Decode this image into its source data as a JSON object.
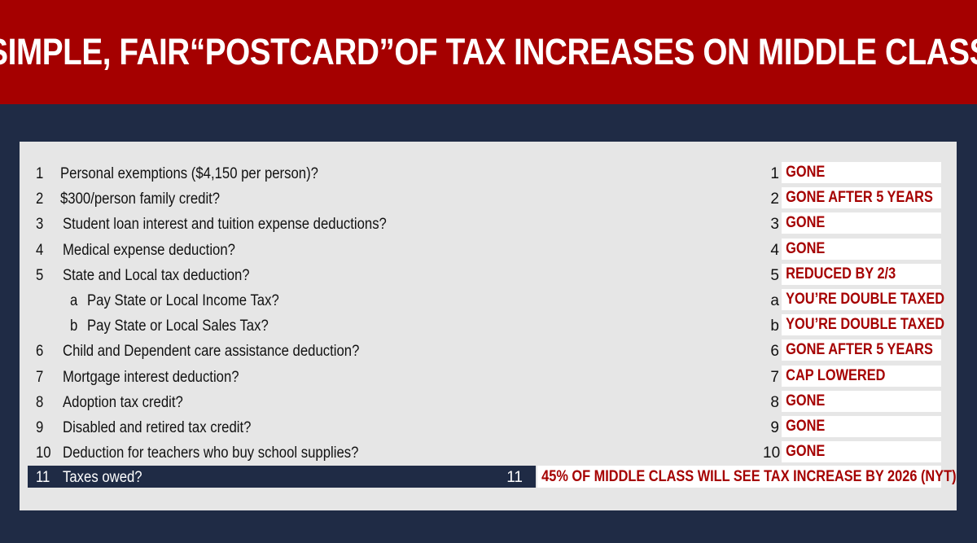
{
  "title": "SIMPLE, FAIR“POSTCARD”OF TAX INCREASES ON MIDDLE CLASS",
  "rows": [
    {
      "num": "1",
      "question": "Personal exemptions ($4,150 per person)?",
      "right_num": "1",
      "answer": "GONE"
    },
    {
      "num": "2",
      "question": "$300/person family credit?",
      "right_num": "2",
      "answer": "GONE AFTER 5 YEARS"
    },
    {
      "num": "3",
      "question": "Student loan interest and tuition expense deductions?",
      "right_num": "3",
      "answer": "GONE"
    },
    {
      "num": "4",
      "question": "Medical expense deduction?",
      "right_num": "4",
      "answer": "GONE"
    },
    {
      "num": "5",
      "question": "State and Local tax deduction?",
      "right_num": "5",
      "answer": "REDUCED BY 2/3"
    },
    {
      "num": "a",
      "question": "Pay State or Local Income Tax?",
      "right_num": "a",
      "answer": "YOU’RE DOUBLE TAXED"
    },
    {
      "num": "b",
      "question": "Pay State or Local Sales Tax?",
      "right_num": "b",
      "answer": "YOU’RE DOUBLE TAXED"
    },
    {
      "num": "6",
      "question": "Child and Dependent care assistance deduction?",
      "right_num": "6",
      "answer": "GONE AFTER 5 YEARS"
    },
    {
      "num": "7",
      "question": "Mortgage interest deduction?",
      "right_num": "7",
      "answer": "CAP LOWERED"
    },
    {
      "num": "8",
      "question": "Adoption tax credit?",
      "right_num": "8",
      "answer": "GONE"
    },
    {
      "num": "9",
      "question": "Disabled and retired tax credit?",
      "right_num": "9",
      "answer": "GONE"
    },
    {
      "num": "10",
      "question": "Deduction for teachers who buy school supplies?",
      "right_num": "10",
      "answer": "GONE"
    }
  ],
  "total": {
    "num": "11",
    "question": "Taxes owed?",
    "right_num": "11",
    "answer": "45% OF MIDDLE CLASS WILL SEE TAX INCREASE BY 2026 (NYT)"
  },
  "colors": {
    "banner": "#a50000",
    "background": "#1f2b45",
    "card": "#e6e6e6",
    "answer_text": "#a50000"
  }
}
